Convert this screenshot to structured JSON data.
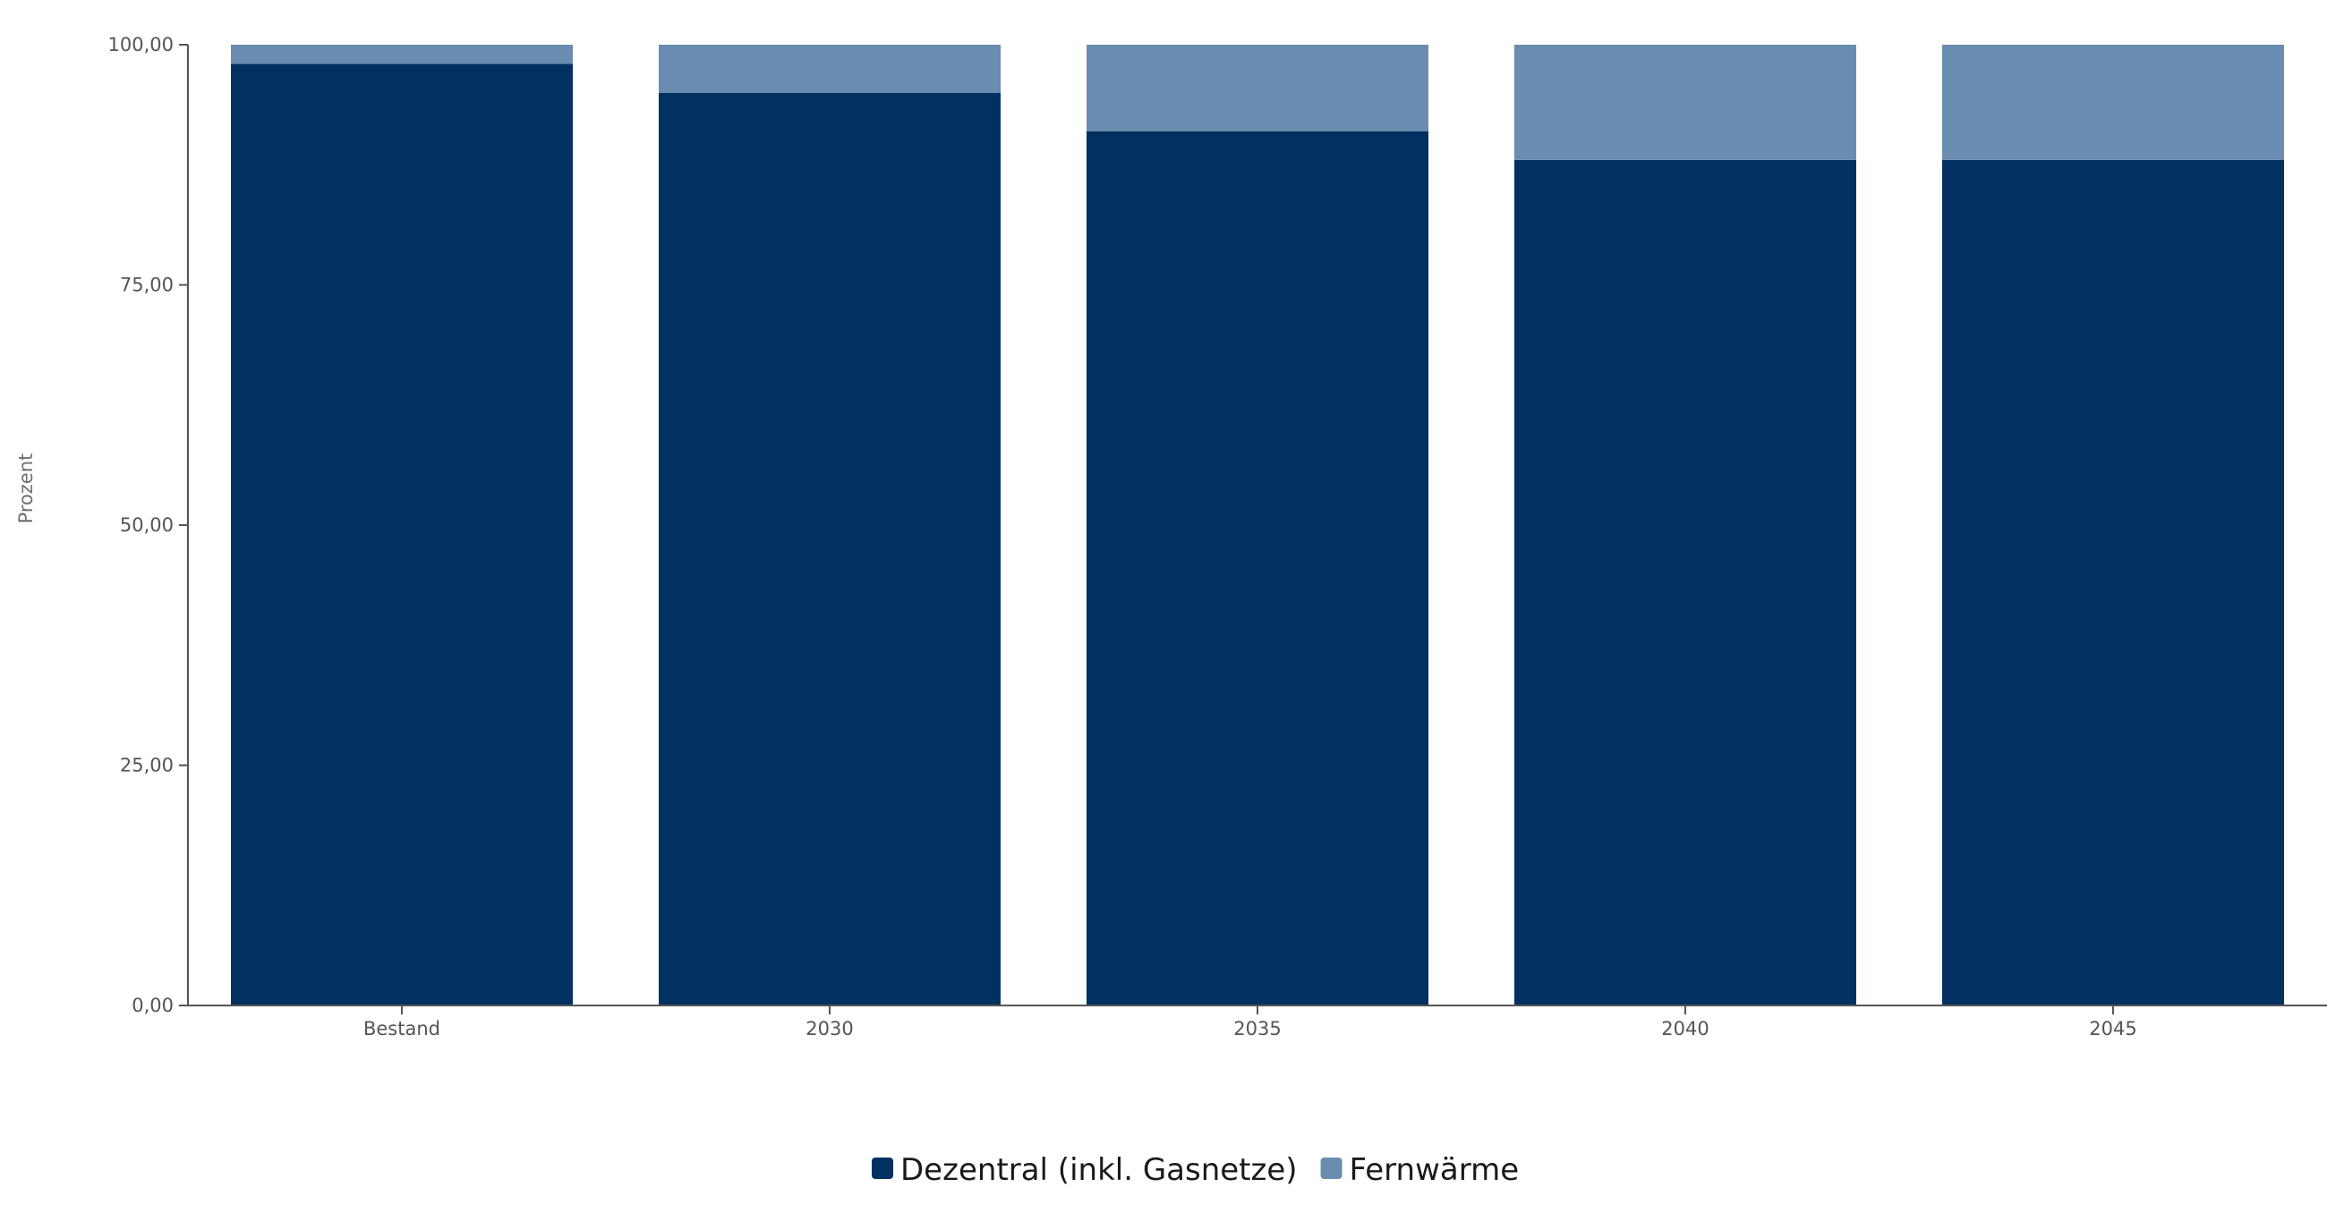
{
  "chart_data": {
    "type": "bar",
    "stacked": true,
    "categories": [
      "Bestand",
      "2030",
      "2035",
      "2040",
      "2045"
    ],
    "series": [
      {
        "name": "Dezentral (inkl. Gasnetze)",
        "color": "#023061",
        "values": [
          98,
          95,
          91,
          88,
          88
        ]
      },
      {
        "name": "Fernwärme",
        "color": "#6a8cb0",
        "values": [
          2,
          5,
          9,
          12,
          12
        ]
      }
    ],
    "ylabel": "Prozent",
    "xlabel": "",
    "ylim": [
      0,
      100
    ],
    "yticks": [
      {
        "value": 0,
        "label": "0,00"
      },
      {
        "value": 25,
        "label": "25,00"
      },
      {
        "value": 50,
        "label": "50,00"
      },
      {
        "value": 75,
        "label": "75,00"
      },
      {
        "value": 100,
        "label": "100,00"
      }
    ],
    "grid": false,
    "legend_position": "bottom-center"
  }
}
